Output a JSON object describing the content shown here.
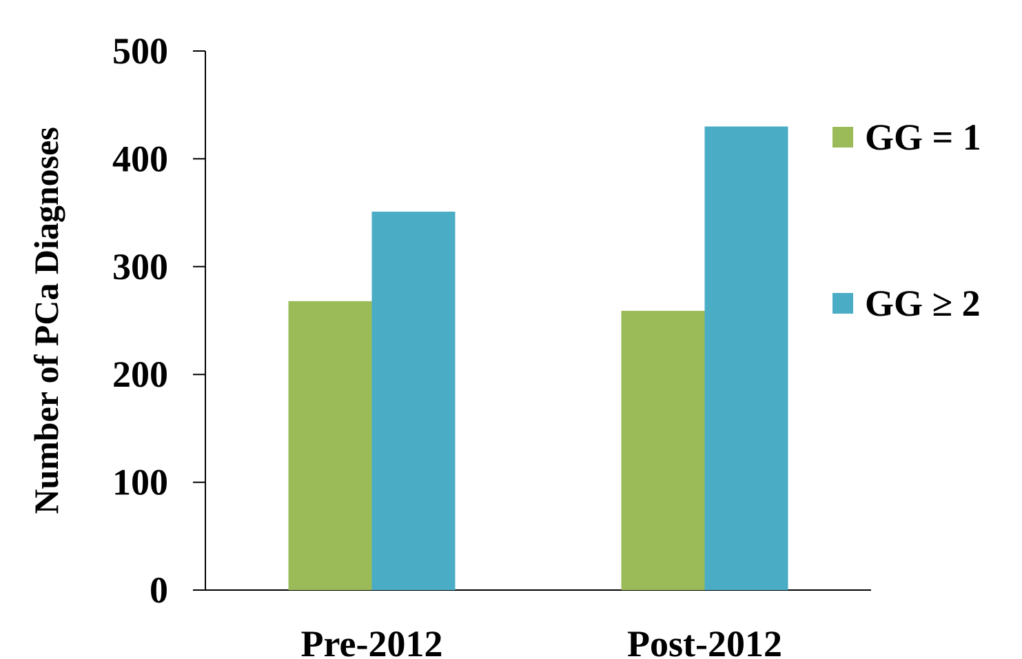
{
  "chart_data": {
    "type": "bar",
    "categories": [
      "Pre-2012",
      "Post-2012"
    ],
    "series": [
      {
        "name": "GG = 1",
        "values": [
          268,
          259
        ],
        "color": "#9bbb59"
      },
      {
        "name": "GG ≥ 2",
        "values": [
          351,
          430
        ],
        "color": "#4bacc6"
      }
    ],
    "title": "",
    "xlabel": "",
    "ylabel": "Number of PCa Diagnoses",
    "ylim": [
      0,
      500
    ],
    "yticks": [
      0,
      100,
      200,
      300,
      400,
      500
    ],
    "ytick_labels": [
      "0",
      "100",
      "200",
      "300",
      "400",
      "500"
    ],
    "grid": false,
    "legend_position": "right"
  }
}
